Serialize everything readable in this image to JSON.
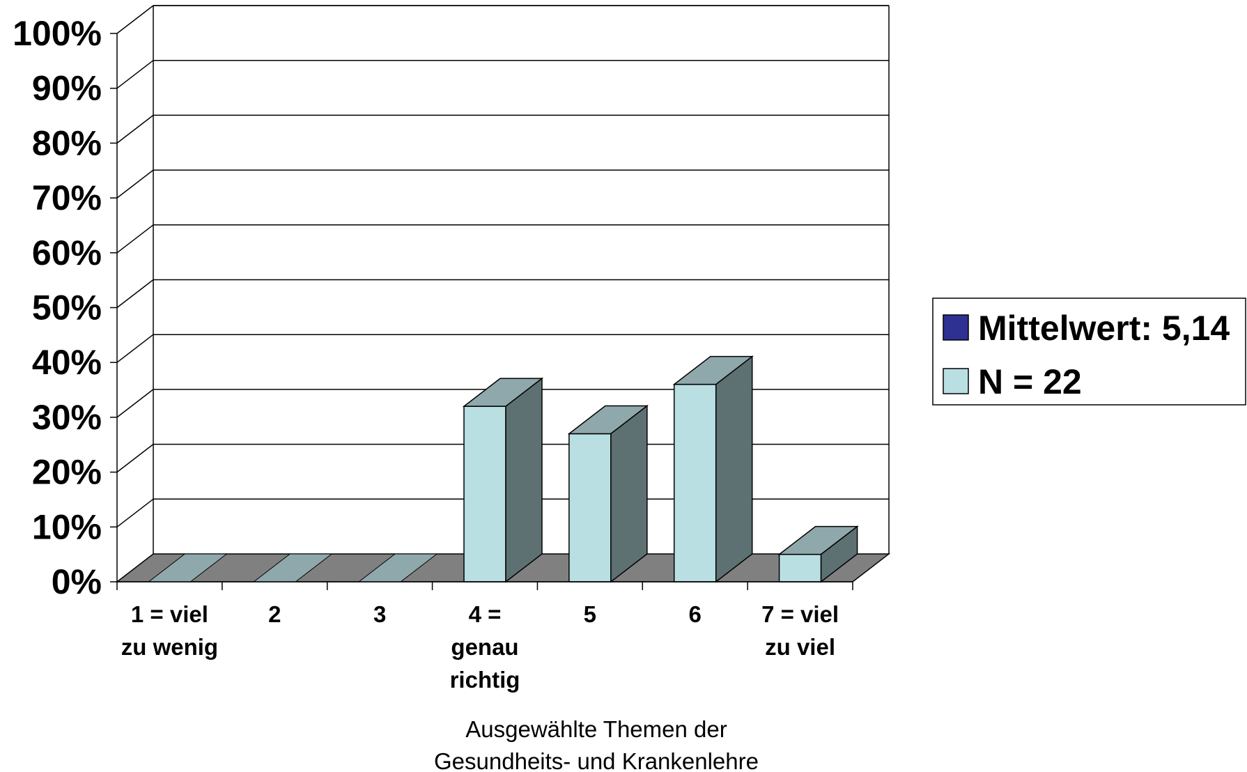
{
  "chart_data": {
    "type": "bar",
    "categories": [
      [
        "1 = viel",
        "zu wenig"
      ],
      [
        "2"
      ],
      [
        "3"
      ],
      [
        "4 =",
        "genau",
        "richtig"
      ],
      [
        "5"
      ],
      [
        "6"
      ],
      [
        "7 = viel",
        "zu viel"
      ]
    ],
    "series": [
      {
        "name": "N = 22",
        "values": [
          0,
          0,
          0,
          32,
          27,
          36,
          5
        ]
      }
    ],
    "ylim": [
      0,
      100
    ],
    "yticks": [
      "0%",
      "10%",
      "20%",
      "30%",
      "40%",
      "50%",
      "60%",
      "70%",
      "80%",
      "90%",
      "100%"
    ],
    "xlabel": [
      "Ausgewählte Themen der",
      "Gesundheits- und Krankenlehre"
    ],
    "ylabel": "",
    "grid": true,
    "legend": {
      "placement": "right",
      "entries": [
        {
          "label": "Mittelwert: 5,14",
          "color": "#2e3192"
        },
        {
          "label": "N = 22",
          "color": "#b9dfe3"
        }
      ]
    },
    "colors": {
      "bar_front": "#b9dfe3",
      "bar_top": "#8fa8ab",
      "bar_side": "#5e7172",
      "floor": "#808080",
      "zero_bar": "#8fa8ab"
    }
  }
}
